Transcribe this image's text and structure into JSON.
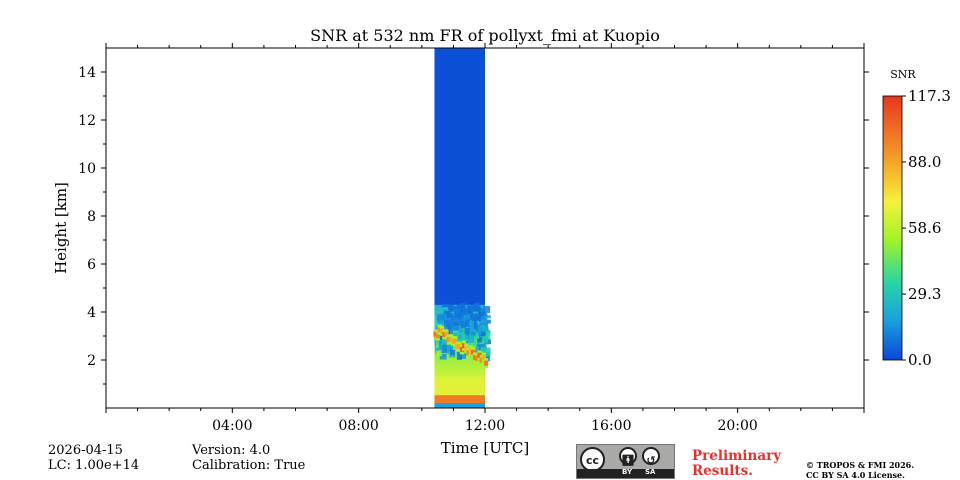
{
  "chart_data": {
    "type": "heatmap",
    "title": "SNR at 532 nm FR of pollyxt_fmi at Kuopio",
    "xlabel": "Time [UTC]",
    "ylabel": "Height [km]",
    "xlim_hours": [
      0,
      24
    ],
    "ylim_km": [
      0,
      15
    ],
    "x_ticks": [
      {
        "hour": 4,
        "label": "04:00"
      },
      {
        "hour": 8,
        "label": "08:00"
      },
      {
        "hour": 12,
        "label": "12:00"
      },
      {
        "hour": 16,
        "label": "16:00"
      },
      {
        "hour": 20,
        "label": "20:00"
      }
    ],
    "y_ticks": [
      {
        "value": 2,
        "label": "2"
      },
      {
        "value": 4,
        "label": "4"
      },
      {
        "value": 6,
        "label": "6"
      },
      {
        "value": 8,
        "label": "8"
      },
      {
        "value": 10,
        "label": "10"
      },
      {
        "value": 12,
        "label": "12"
      },
      {
        "value": 14,
        "label": "14"
      }
    ],
    "data_window_hours": [
      10.4,
      12.0
    ],
    "background_snr_above_4km": 2,
    "features": [
      {
        "name": "near-surface layer",
        "height_km": [
          0.0,
          0.2
        ],
        "snr": 20
      },
      {
        "name": "surface strong return",
        "height_km": [
          0.35,
          0.45
        ],
        "snr": 105
      },
      {
        "name": "boundary layer",
        "height_km": [
          0.5,
          1.3
        ],
        "snr": 75
      },
      {
        "name": "aerosol/cloud layer (descending)",
        "height_start_km": 3.2,
        "height_end_km": 2.0,
        "snr": 110
      },
      {
        "name": "noisy transition",
        "height_km": [
          2.5,
          4.3
        ],
        "snr": 35
      }
    ],
    "colorbar": {
      "label": "SNR",
      "min": 0.0,
      "max": 117.3,
      "ticks": [
        "0.0",
        "29.3",
        "58.6",
        "88.0",
        "117.3"
      ],
      "colormap": [
        "#0a47d6",
        "#1aa1e0",
        "#2ad7a0",
        "#9ef32a",
        "#f5f23b",
        "#f6a428",
        "#e8361f"
      ]
    }
  },
  "footer": {
    "date": "2026-04-15",
    "lc": "LC: 1.00e+14",
    "version": "Version: 4.0",
    "calibration": "Calibration: True",
    "preliminary_line1": "Preliminary",
    "preliminary_line2": "Results.",
    "copyright_line1": "© TROPOS & FMI 2026.",
    "copyright_line2": "CC BY SA 4.0 License.",
    "license_badge_text": "BY",
    "license_badge_text2": "SA",
    "license_cc": "cc"
  },
  "colors": {
    "preliminary": "#e8302e",
    "badge_bg": "#a9aaa8",
    "badge_bar": "#222222"
  }
}
